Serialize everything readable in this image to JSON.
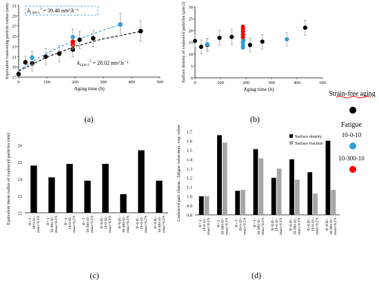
{
  "panel_labels": [
    "(a)",
    "(b)",
    "(c)",
    "(d)"
  ],
  "legend": {
    "title": "Strain-free aging",
    "items": [
      {
        "label": "Fatigue",
        "color": "#000000"
      },
      {
        "label": "10-0-10",
        "color": "#2e9fd6"
      },
      {
        "label": "10-300-10",
        "color": "#ff0000"
      }
    ]
  },
  "colors": {
    "black": "#000000",
    "blue": "#2e9fd6",
    "red": "#ff0000",
    "gray": "#a6a6a6",
    "err": "#a0a0a0"
  },
  "chart_data": [
    {
      "type": "scatter",
      "xlabel": "Aging time (h)",
      "ylabel": "Equivalent coalescing particle radius (nm)",
      "xlim": [
        0,
        500
      ],
      "ylim": [
        17,
        31
      ],
      "xticks": [
        0,
        100,
        200,
        300,
        400,
        500
      ],
      "yticks": [
        17,
        19,
        21,
        23,
        25,
        27,
        29,
        31
      ],
      "series": [
        {
          "name": "Strain-free aging",
          "color": "#000000",
          "x": [
            0,
            24,
            48,
            96,
            144,
            192,
            216,
            264,
            432
          ],
          "y": [
            17.6,
            19.9,
            19.7,
            21.0,
            21.6,
            22.4,
            24.3,
            24.6,
            26.0
          ],
          "err": [
            0.8,
            1.2,
            1.5,
            1.6,
            1.6,
            1.4,
            1.7,
            1.6,
            2.0
          ]
        },
        {
          "name": "10-0-10",
          "color": "#2e9fd6",
          "x": [
            48,
            192,
            360
          ],
          "y": [
            20.8,
            24.8,
            27.3
          ],
          "err": [
            1.3,
            1.6,
            2.2
          ]
        },
        {
          "name": "10-300-10",
          "color": "#ff0000",
          "x": [
            192,
            192
          ],
          "y": [
            23.3,
            23.9
          ],
          "err": [
            0.8,
            0.8
          ]
        }
      ],
      "fits": [
        {
          "label_main": "k",
          "label_sub": "LSW-1",
          "label_sup": "3",
          "value_text": "= 39.48 nm³.h⁻¹",
          "style": "dashed",
          "color": "#2e9fd6",
          "boxed": true,
          "x": [
            0,
            50,
            100,
            150,
            200,
            250,
            300,
            360
          ],
          "y": [
            18.3,
            20.1,
            21.7,
            23.0,
            24.1,
            25.2,
            26.2,
            27.3
          ]
        },
        {
          "label_main": "k",
          "label_sub": "LSW-1",
          "label_sup": "3",
          "value_text": "= 28.02 nm³.h⁻¹",
          "style": "dashed",
          "color": "#000000",
          "boxed": false,
          "x": [
            0,
            100,
            200,
            300,
            440
          ],
          "y": [
            18.2,
            20.9,
            23.0,
            24.5,
            26.0
          ]
        }
      ]
    },
    {
      "type": "scatter",
      "xlabel": "Aging time (h)",
      "ylabel": "Surface density of coalesced particles (μm-2)",
      "xlim": [
        0,
        500
      ],
      "ylim": [
        0,
        30
      ],
      "xticks": [
        0,
        100,
        200,
        300,
        400,
        500
      ],
      "yticks": [
        0,
        5,
        10,
        15,
        20,
        25,
        30
      ],
      "series": [
        {
          "name": "Strain-free aging",
          "color": "#000000",
          "x": [
            0,
            24,
            48,
            96,
            144,
            216,
            264,
            432
          ],
          "y": [
            15.6,
            13.1,
            13.9,
            16.9,
            17.3,
            13.9,
            15.3,
            21.2
          ],
          "err": [
            3.0,
            2.9,
            2.7,
            3.1,
            3.3,
            2.9,
            3.1,
            3.2
          ]
        },
        {
          "name": "10-0-10",
          "color": "#2e9fd6",
          "x": [
            48,
            188,
            188,
            188,
            190,
            360
          ],
          "y": [
            14.2,
            12.8,
            13.9,
            15.1,
            15.9,
            16.3
          ],
          "err": [
            2.5,
            0,
            0,
            0,
            0,
            2.8
          ]
        },
        {
          "name": "10-300-10",
          "color": "#ff0000",
          "x": [
            188,
            188,
            188,
            188,
            188
          ],
          "y": [
            17.2,
            18.3,
            19.5,
            20.6,
            21.6
          ],
          "err": [
            0,
            0,
            0,
            0,
            0
          ]
        }
      ]
    },
    {
      "type": "bar",
      "ylabel": "Equivalent mean radius of coalesced particles (nm)",
      "ylim": [
        22,
        26
      ],
      "yticks": [
        22,
        23,
        24,
        25,
        26
      ],
      "categories": [
        "R=-1 - 10-0-10 - εmax=0.3%",
        "R=-1 - 10-300-10 - εmax=0.3%",
        "R=-1 - 10-0-10 - εmax=0.2%",
        "R=-1 - 10-300-10 - εmax=0.2%",
        "R=0.05 - 10-0-10 - εmax=0.3%",
        "R=0.05 - 10-300-10 - εmax=0.3%",
        "R=0.05 - 10-0-10 - εmax=0.2%",
        "R=0.05 - 10-300-10 - εmax=0.2%"
      ],
      "values": [
        24.8,
        24.1,
        24.9,
        23.9,
        24.9,
        23.1,
        25.7,
        23.9
      ]
    },
    {
      "type": "bar",
      "ylabel": "Coalesced part. charac.: fatigue value/max. exp. value",
      "ylim": [
        0.8,
        1.7
      ],
      "yticks": [
        0.8,
        0.9,
        1.0,
        1.1,
        1.2,
        1.3,
        1.4,
        1.5,
        1.6,
        1.7
      ],
      "categories": [
        "R=-1 - 10-0-10 - εmax=0.3%",
        "R=-1 - 10-300-10 - εmax=0.3%",
        "R=-1 - 10-0-10 - εmax=0.2%",
        "R=-1 - 10-300-10 - εmax=0.2%",
        "R=0.05 - 10-0-10 - εmax=0.3%",
        "R=0.05 - 10-300-10 - εmax=0.3%",
        "R=0.05 - 10-0-10 - εmax=0.2%",
        "R=0.05 - 10-300-10 - εmax=0.2%"
      ],
      "series": [
        {
          "name": "Surface density",
          "color": "#000000",
          "values": [
            1.0,
            1.66,
            1.06,
            1.51,
            1.2,
            1.4,
            1.26,
            1.6
          ]
        },
        {
          "name": "Surface fraction",
          "color": "#a6a6a6",
          "values": [
            1.0,
            1.58,
            1.07,
            1.41,
            1.3,
            1.18,
            1.03,
            1.07
          ]
        }
      ]
    }
  ]
}
